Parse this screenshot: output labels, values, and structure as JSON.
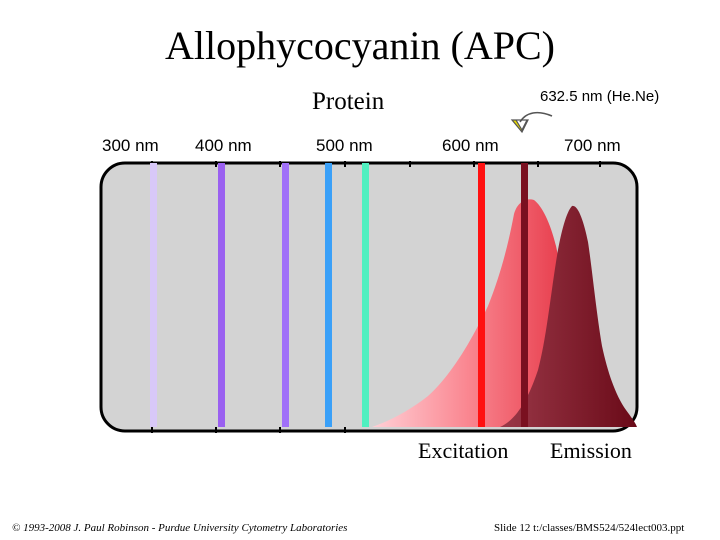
{
  "title": "Allophycocyanin (APC)",
  "protein_label": "Protein",
  "laser_label": "632.5 nm (He.Ne)",
  "wavelength_labels": [
    "300 nm",
    "400 nm",
    "500 nm",
    "600 nm",
    "700 nm"
  ],
  "excitation_label": "Excitation",
  "emission_label": "Emission",
  "footer_left": "© 1993-2008 J. Paul Robinson - Purdue University Cytometry Laboratories",
  "footer_right": "Slide 12  t:/classes/BMS524/524lect003.ppt",
  "colors": {
    "panel_background": "#d3d3d3",
    "excitation_fill": "#f05a6a",
    "emission_fill": "#7a0f22",
    "arrow": "#e6d800"
  },
  "laser_lines": [
    {
      "name": "line-violet-light",
      "color": "#d8c8f8"
    },
    {
      "name": "line-violet",
      "color": "#9a60f0"
    },
    {
      "name": "line-purple",
      "color": "#a070f8"
    },
    {
      "name": "line-blue",
      "color": "#3aa0f8"
    },
    {
      "name": "line-aqua",
      "color": "#50f0c0"
    },
    {
      "name": "line-red",
      "color": "#ff1010"
    },
    {
      "name": "line-darkred",
      "color": "#7a1020"
    }
  ]
}
